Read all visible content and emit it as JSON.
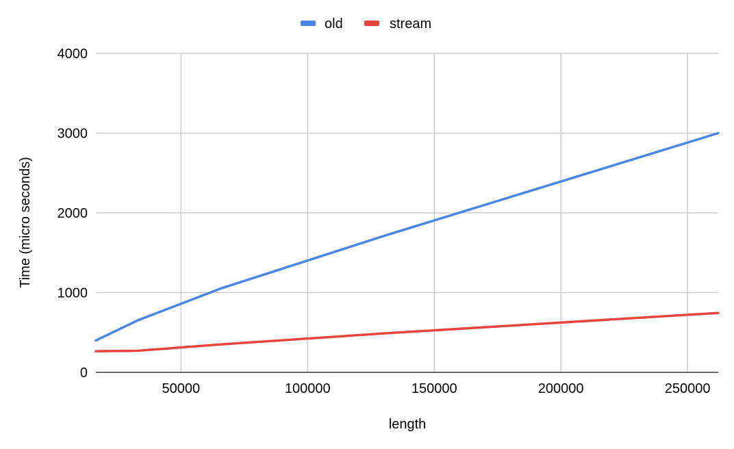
{
  "chart_data": {
    "type": "line",
    "xlabel": "length",
    "ylabel": "Time (micro seconds)",
    "xlim": [
      16384,
      262144
    ],
    "ylim": [
      0,
      4000
    ],
    "x_ticks": [
      50000,
      100000,
      150000,
      200000,
      250000
    ],
    "x_tick_labels": [
      "50000",
      "100000",
      "150000",
      "200000",
      "250000"
    ],
    "y_ticks": [
      0,
      1000,
      2000,
      3000,
      4000
    ],
    "y_tick_labels": [
      "0",
      "1000",
      "2000",
      "3000",
      "4000"
    ],
    "grid": true,
    "legend_position": "top",
    "x": [
      16384,
      32768,
      65536,
      131072,
      262144
    ],
    "series": [
      {
        "name": "old",
        "color": "#4a86e8",
        "values": [
          400,
          650,
          1050,
          1720,
          3000
        ]
      },
      {
        "name": "stream",
        "color": "#e8453c",
        "values": [
          265,
          270,
          350,
          490,
          745
        ]
      }
    ]
  }
}
